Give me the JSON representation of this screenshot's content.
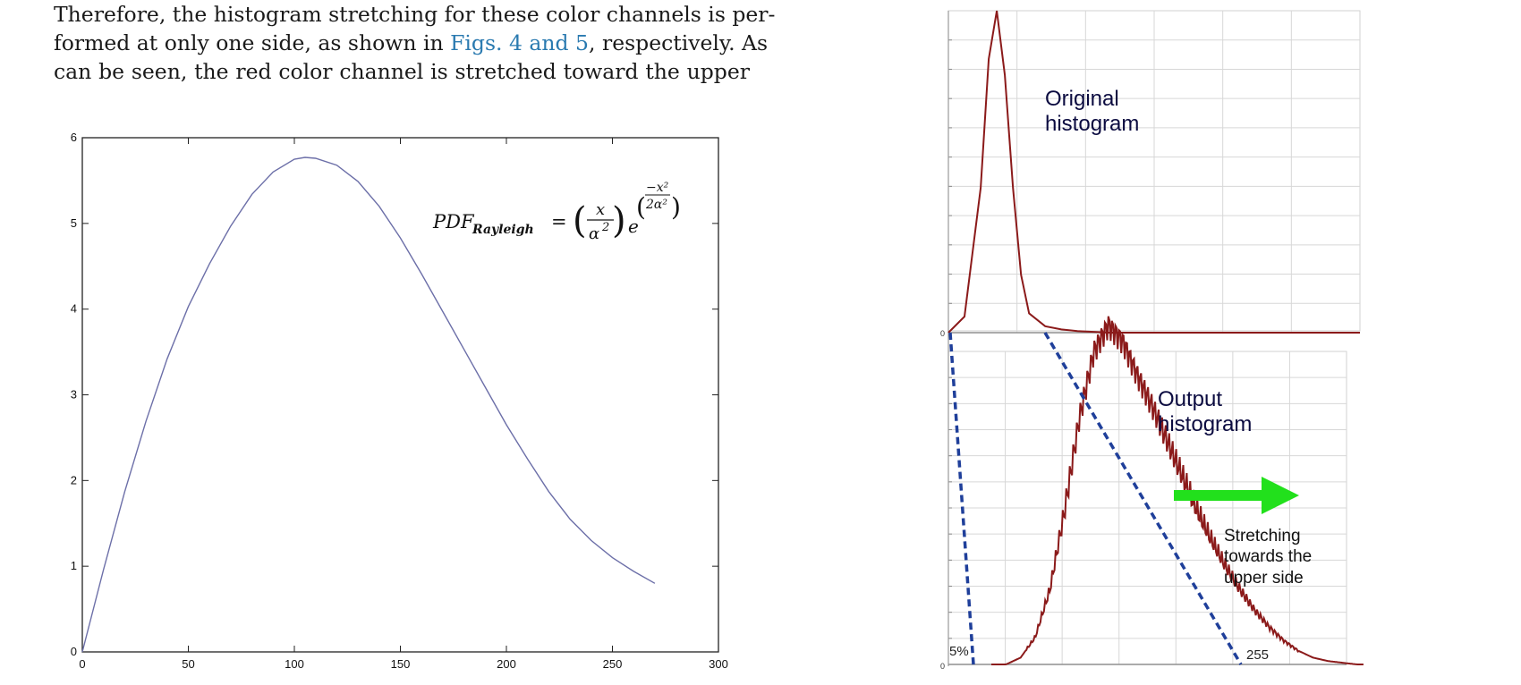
{
  "paragraph": {
    "line1": "Therefore, the histogram stretching for these color channels is per-",
    "line2_pre": "formed at only one side, as shown in ",
    "line2_link": "Figs. 4 and 5",
    "line2_post": ", respectively. As",
    "line3": "can be seen, the red color channel is stretched toward the upper"
  },
  "colors": {
    "text": "#1a1a1a",
    "link": "#2a7ab0",
    "curve": "#6c6fa8",
    "histogram": "#8b1a1a",
    "dashed": "#1f3f9a",
    "arrow": "#22e01c",
    "grid": "#d7d7d7"
  },
  "chart_data": [
    {
      "type": "line",
      "title": "",
      "xlabel": "",
      "ylabel": "",
      "xlim": [
        0,
        300
      ],
      "ylim": [
        0,
        6
      ],
      "xticks": [
        0,
        50,
        100,
        150,
        200,
        250,
        300
      ],
      "yticks": [
        0,
        1,
        2,
        3,
        4,
        5,
        6
      ],
      "x_tick_labels": [
        "0",
        "50",
        "100",
        "150",
        "200",
        "250",
        "300"
      ],
      "y_tick_labels": [
        "0",
        "1",
        "2",
        "3",
        "4",
        "5",
        "6"
      ],
      "annotation": {
        "lhs": "PDF",
        "lhs_sub": "Rayleigh",
        "eq": "=",
        "num": "x",
        "den": "α",
        "den_sup": "2",
        "base": "e",
        "exp_num": "−x²",
        "exp_den": "2α²"
      },
      "series": [
        {
          "x": [
            0,
            10,
            20,
            30,
            40,
            50,
            60,
            70,
            80,
            90,
            100,
            105,
            110,
            120,
            130,
            140,
            150,
            160,
            170,
            180,
            190,
            200,
            210,
            220,
            230,
            240,
            250,
            260,
            270
          ],
          "y": [
            0,
            0.96,
            1.87,
            2.69,
            3.42,
            4.03,
            4.53,
            4.97,
            5.34,
            5.6,
            5.75,
            5.77,
            5.76,
            5.68,
            5.49,
            5.2,
            4.83,
            4.41,
            3.97,
            3.53,
            3.09,
            2.65,
            2.25,
            1.87,
            1.55,
            1.3,
            1.1,
            0.94,
            0.8
          ]
        }
      ],
      "grid": false
    },
    {
      "type": "area",
      "title": "",
      "panels": [
        {
          "label_line1": "Original",
          "label_line2": "histogram"
        },
        {
          "label_line1": "Output",
          "label_line2": "histogram"
        }
      ],
      "arrow_text": [
        "Stretching",
        "towards the",
        "upper side"
      ],
      "markers": {
        "low": "5%",
        "high": "255",
        "zero_top": "0",
        "zero_bottom": "0"
      },
      "original_histogram": {
        "x": [
          0,
          10,
          20,
          25,
          30,
          35,
          40,
          45,
          50,
          60,
          70,
          80,
          100,
          255
        ],
        "y": [
          0,
          0.05,
          0.45,
          0.85,
          1.0,
          0.8,
          0.45,
          0.18,
          0.06,
          0.02,
          0.01,
          0.005,
          0,
          0
        ]
      },
      "output_histogram": {
        "x": [
          0,
          10,
          20,
          30,
          40,
          50,
          60,
          70,
          80,
          90,
          100,
          110,
          120,
          130,
          140,
          150,
          160,
          170,
          180,
          190,
          200,
          210,
          220,
          230,
          240,
          250,
          255
        ],
        "y": [
          0,
          0.0,
          0.02,
          0.08,
          0.22,
          0.45,
          0.72,
          0.92,
          1.0,
          0.95,
          0.85,
          0.76,
          0.66,
          0.56,
          0.46,
          0.37,
          0.29,
          0.22,
          0.16,
          0.11,
          0.07,
          0.04,
          0.02,
          0.01,
          0.005,
          0.0,
          0.0
        ]
      }
    }
  ]
}
